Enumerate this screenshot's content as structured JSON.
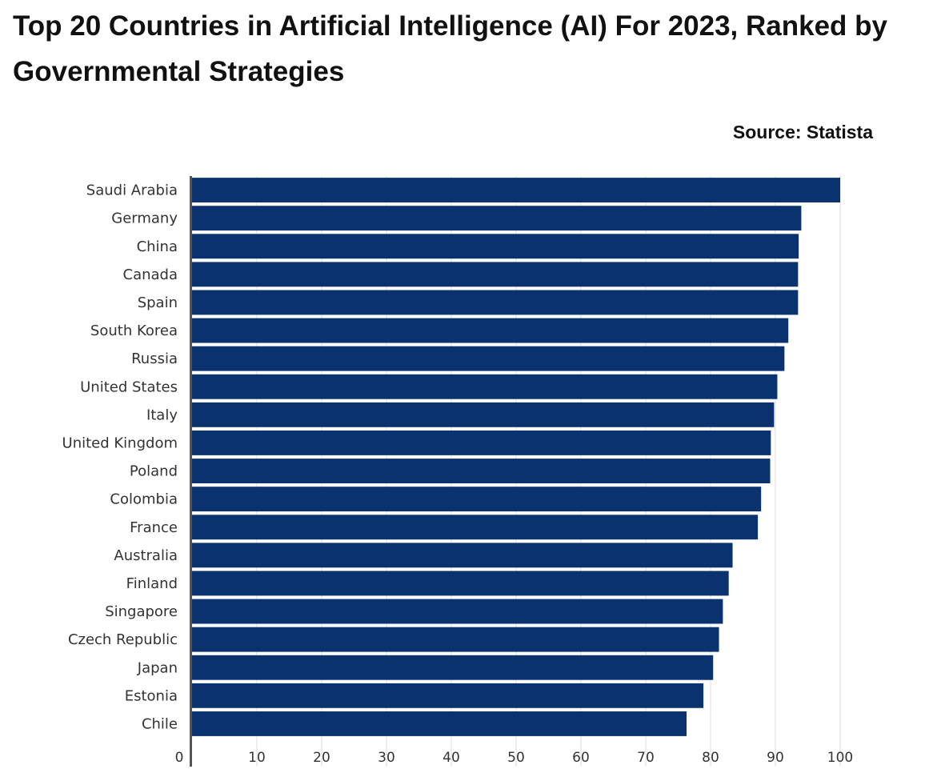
{
  "chart_data": {
    "type": "bar",
    "orientation": "horizontal",
    "title": "Top 20 Countries in Artificial Intelligence (AI) For 2023, Ranked by Governmental Strategies",
    "source": "Source: Statista",
    "categories": [
      "Saudi Arabia",
      "Germany",
      "China",
      "Canada",
      "Spain",
      "South Korea",
      "Russia",
      "United States",
      "Italy",
      "United Kingdom",
      "Poland",
      "Colombia",
      "France",
      "Australia",
      "Finland",
      "Singapore",
      "Czech Republic",
      "Japan",
      "Estonia",
      "Chile"
    ],
    "values": [
      100,
      94,
      93.6,
      93.5,
      93.5,
      92,
      91.4,
      90.3,
      89.8,
      89.3,
      89.2,
      87.8,
      87.3,
      83.4,
      82.8,
      81.9,
      81.3,
      80.4,
      78.9,
      76.3
    ],
    "xlabel": "",
    "ylabel": "",
    "xlim": [
      0,
      100
    ],
    "xticks": [
      "0",
      "10",
      "20",
      "30",
      "40",
      "50",
      "60",
      "70",
      "80",
      "90",
      "100"
    ],
    "grid": "vertical",
    "bar_color": "#0a326e",
    "grid_color": "#dddddd",
    "axis_color": "#555555"
  }
}
